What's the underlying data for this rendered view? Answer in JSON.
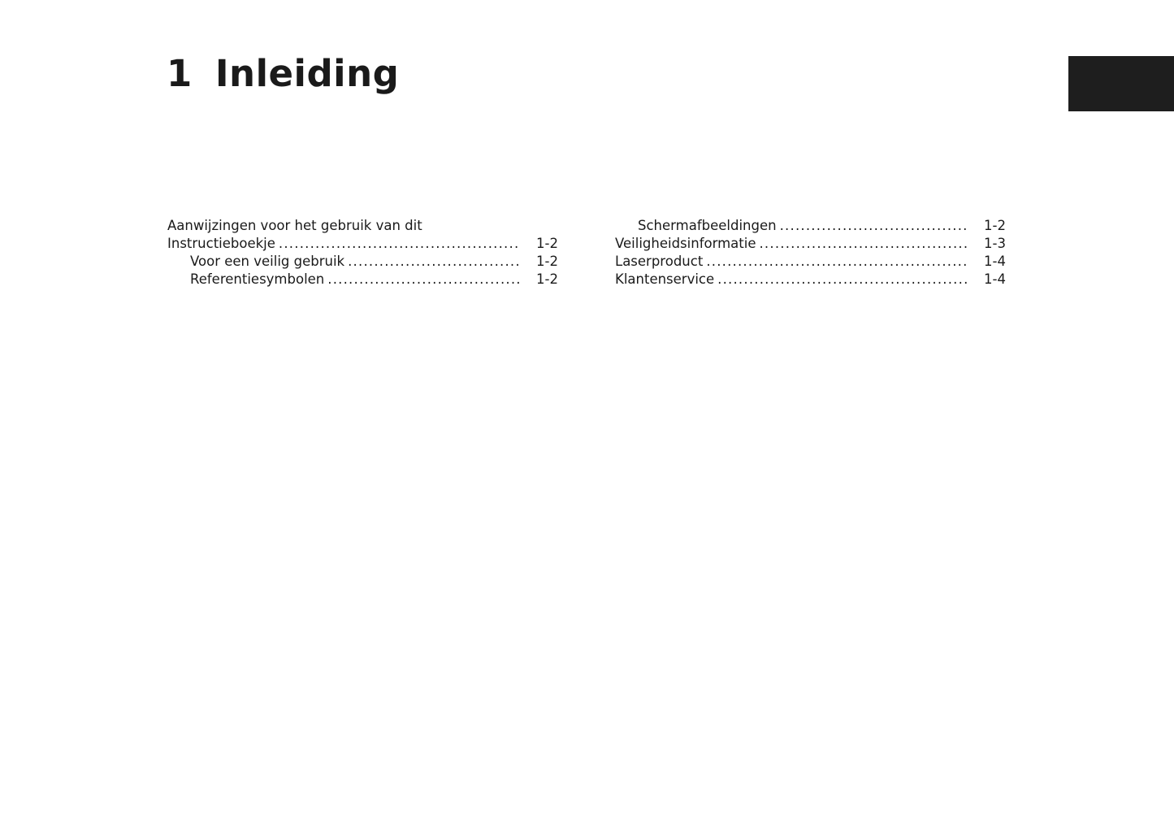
{
  "chapter": {
    "number": "1",
    "title": "Inleiding"
  },
  "tab_color": "#1e1e1e",
  "toc_left": {
    "heading_line": "Aanwijzingen voor het gebruik van dit",
    "entries": [
      {
        "title": "Instructieboekje",
        "page": "1-2"
      },
      {
        "title": "Voor een veilig gebruik",
        "page": "1-2"
      },
      {
        "title": "Referentiesymbolen",
        "page": "1-2"
      }
    ]
  },
  "toc_right": {
    "entries": [
      {
        "title": "Schermafbeeldingen",
        "page": "1-2"
      },
      {
        "title": "Veiligheidsinformatie",
        "page": "1-3"
      },
      {
        "title": "Laserproduct",
        "page": "1-4"
      },
      {
        "title": "Klantenservice",
        "page": "1-4"
      }
    ]
  }
}
